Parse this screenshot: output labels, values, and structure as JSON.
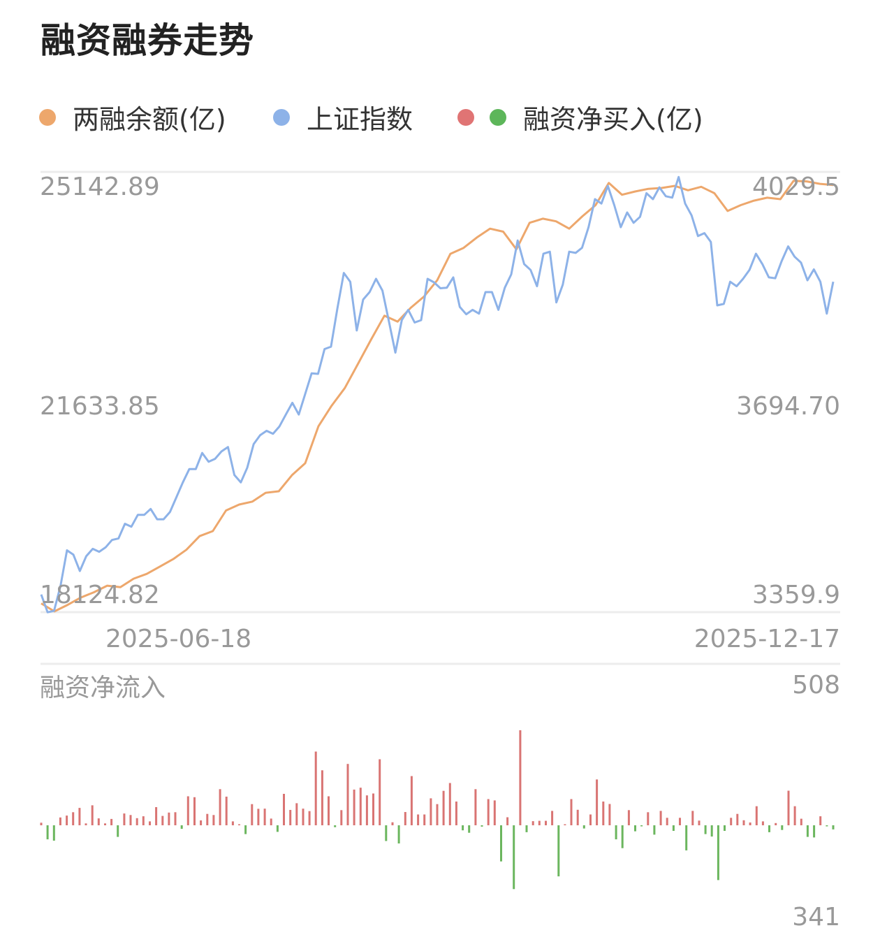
{
  "title": "融资融券走势",
  "legend": [
    {
      "label": "两融余额(亿)",
      "colors": [
        "#EDA76C"
      ]
    },
    {
      "label": "上证指数",
      "colors": [
        "#8DB2E8"
      ]
    },
    {
      "label": "融资净买入(亿)",
      "colors": [
        "#E07474",
        "#5DB65A"
      ]
    }
  ],
  "chart_data": [
    {
      "type": "line",
      "left_axis": {
        "ticks": [
          "25142.89",
          "21633.85",
          "18124.82"
        ],
        "range": [
          18124.82,
          25142.89
        ]
      },
      "right_axis": {
        "ticks": [
          "4029.5",
          "3694.70",
          "3359.9"
        ],
        "range": [
          3359.9,
          4029.5
        ]
      },
      "x_tick_labels": [
        "2025-06-18",
        "2025-12-17"
      ],
      "grid": true,
      "series": [
        {
          "name": "两融余额(亿)",
          "axis": "left",
          "color": "#EDA76C",
          "values": [
            18275,
            18148,
            18252,
            18369,
            18454,
            18558,
            18534,
            18670,
            18746,
            18863,
            18981,
            19131,
            19348,
            19428,
            19757,
            19851,
            19898,
            20039,
            20063,
            20321,
            20510,
            21098,
            21427,
            21709,
            22095,
            22485,
            22862,
            22768,
            22988,
            23167,
            23426,
            23849,
            23943,
            24108,
            24249,
            24202,
            23920,
            24343,
            24409,
            24367,
            24249,
            24447,
            24625,
            24978,
            24790,
            24842,
            24884,
            24898,
            24931,
            24861,
            24917,
            24814,
            24531,
            24625,
            24696,
            24743,
            24720,
            25011,
            25002,
            24964,
            24945
          ]
        },
        {
          "name": "上证指数",
          "axis": "right",
          "color": "#8DB2E8",
          "values": [
            3387.7,
            3360.8,
            3363.0,
            3401.2,
            3455.0,
            3448.3,
            3423.6,
            3446.1,
            3457.3,
            3452.8,
            3459.5,
            3470.8,
            3473.0,
            3495.4,
            3491.0,
            3508.9,
            3508.9,
            3517.9,
            3502.2,
            3502.2,
            3513.4,
            3535.8,
            3558.3,
            3578.5,
            3578.5,
            3603.1,
            3589.7,
            3594.2,
            3605.4,
            3612.1,
            3569.5,
            3558.3,
            3580.7,
            3616.6,
            3630.1,
            3636.8,
            3632.3,
            3643.5,
            3661.5,
            3679.4,
            3661.5,
            3692.9,
            3724.3,
            3723.4,
            3761.1,
            3764.7,
            3823.1,
            3876.9,
            3863.5,
            3789.4,
            3836.5,
            3847.8,
            3867.9,
            3850.0,
            3802.9,
            3755.7,
            3805.1,
            3820.8,
            3801.5,
            3805.1,
            3867.9,
            3862.6,
            3853.6,
            3854.5,
            3870.2,
            3825.3,
            3814.1,
            3820.8,
            3815.0,
            3847.8,
            3847.8,
            3820.8,
            3854.5,
            3874.7,
            3926.3,
            3890.4,
            3881.4,
            3856.7,
            3906.1,
            3909.2,
            3832.0,
            3859.0,
            3909.2,
            3907.4,
            3915.1,
            3946.5,
            3989.1,
            3982.4,
            4009.3,
            3980.1,
            3946.5,
            3968.9,
            3953.2,
            3962.2,
            3998.1,
            3989.1,
            4007.1,
            3993.6,
            3991.4,
            4022.8,
            3982.4,
            3964.4,
            3933.0,
            3937.5,
            3924.0,
            3827.6,
            3829.8,
            3863.5,
            3856.7,
            3867.9,
            3881.4,
            3906.1,
            3890.4,
            3870.2,
            3868.8,
            3894.9,
            3917.3,
            3901.6,
            3892.6,
            3865.7,
            3882.3,
            3863.5,
            3815.0,
            3863.5
          ]
        }
      ]
    },
    {
      "type": "bar",
      "title": "融资净流入",
      "max_label": "508",
      "min_label": "341",
      "ylim": [
        -341,
        508
      ],
      "positive_color": "#D97473",
      "negative_color": "#6BB65E",
      "values": [
        14,
        -75,
        -82,
        42,
        52,
        70,
        93,
        10,
        107,
        37,
        10,
        34,
        -62,
        63,
        55,
        38,
        48,
        21,
        97,
        50,
        68,
        70,
        -19,
        155,
        150,
        26,
        61,
        55,
        193,
        153,
        21,
        5,
        -47,
        113,
        88,
        89,
        36,
        -35,
        168,
        82,
        118,
        89,
        76,
        394,
        294,
        155,
        -10,
        81,
        328,
        191,
        201,
        160,
        170,
        353,
        -84,
        16,
        -97,
        71,
        263,
        58,
        58,
        144,
        113,
        184,
        226,
        127,
        -27,
        -40,
        193,
        -7,
        140,
        133,
        -193,
        43,
        -341,
        508,
        -37,
        22,
        24,
        24,
        77,
        -273,
        2,
        140,
        83,
        -17,
        58,
        245,
        127,
        114,
        -75,
        -122,
        81,
        -32,
        -2,
        70,
        -50,
        77,
        40,
        -30,
        40,
        -134,
        77,
        25,
        -47,
        -60,
        -293,
        -30,
        40,
        61,
        27,
        15,
        102,
        21,
        -37,
        12,
        -25,
        185,
        102,
        35,
        -62,
        -65,
        48,
        -2,
        -22
      ]
    }
  ]
}
